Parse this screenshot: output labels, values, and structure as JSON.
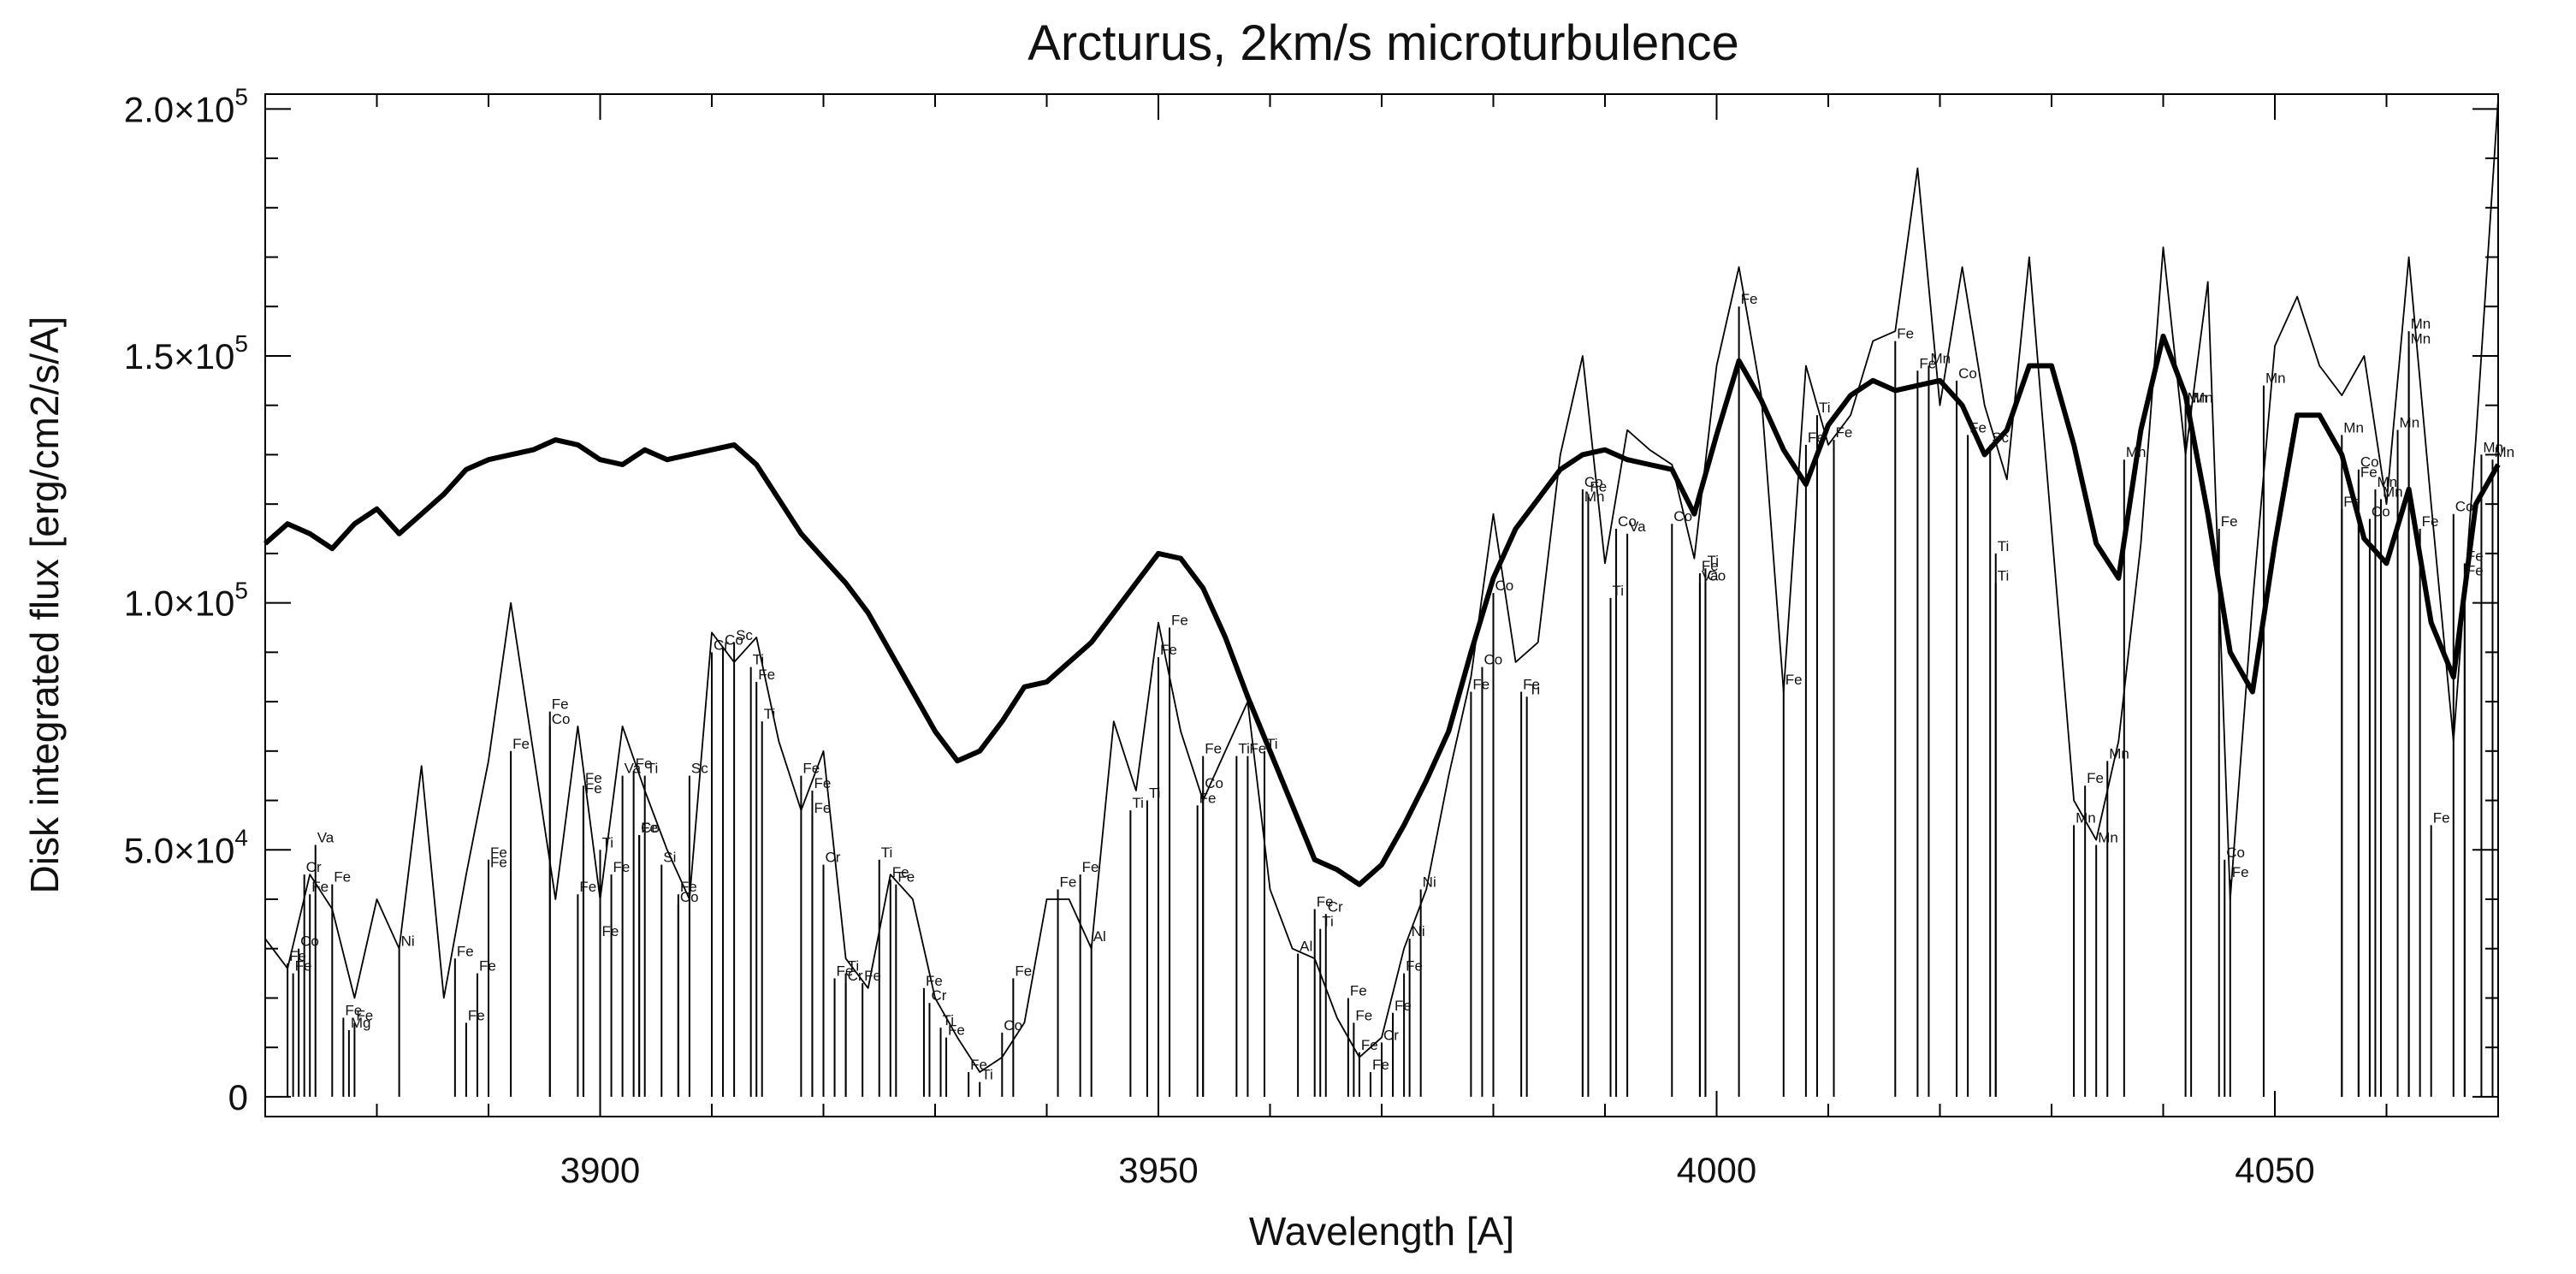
{
  "chart_data": {
    "type": "line",
    "title": "Arcturus, 2km/s microturbulence",
    "xlabel": "Wavelength [A]",
    "ylabel": "Disk integrated flux [erg/cm2/s/A]",
    "xlim": [
      3870,
      4070
    ],
    "ylim": [
      -4000,
      203000
    ],
    "x_ticks": [
      3900,
      3950,
      4000,
      4050
    ],
    "x_tick_labels": [
      "3900",
      "3950",
      "4000",
      "4050"
    ],
    "y_ticks": [
      0,
      50000,
      100000,
      150000,
      200000
    ],
    "y_tick_labels": [
      {
        "mantissa": "0",
        "exp": ""
      },
      {
        "mantissa": "5.0×10",
        "exp": "4"
      },
      {
        "mantissa": "1.0×10",
        "exp": "5"
      },
      {
        "mantissa": "1.5×10",
        "exp": "5"
      },
      {
        "mantissa": "2.0×10",
        "exp": "5"
      }
    ],
    "series": [
      {
        "style": "thick",
        "x": [
          3870,
          3872,
          3874,
          3876,
          3878,
          3880,
          3882,
          3884,
          3886,
          3888,
          3890,
          3892,
          3894,
          3896,
          3898,
          3900,
          3902,
          3904,
          3906,
          3908,
          3910,
          3912,
          3914,
          3916,
          3918,
          3920,
          3922,
          3924,
          3926,
          3928,
          3930,
          3932,
          3934,
          3936,
          3938,
          3940,
          3942,
          3944,
          3946,
          3948,
          3950,
          3952,
          3954,
          3956,
          3958,
          3960,
          3962,
          3964,
          3966,
          3968,
          3970,
          3972,
          3974,
          3976,
          3978,
          3980,
          3982,
          3984,
          3986,
          3988,
          3990,
          3992,
          3994,
          3996,
          3998,
          4000,
          4002,
          4004,
          4006,
          4008,
          4010,
          4012,
          4014,
          4016,
          4018,
          4020,
          4022,
          4024,
          4026,
          4028,
          4030,
          4032,
          4034,
          4036,
          4038,
          4040,
          4042,
          4044,
          4046,
          4048,
          4050,
          4052,
          4054,
          4056,
          4058,
          4060,
          4062,
          4064,
          4066,
          4068,
          4070
        ],
        "y": [
          112000,
          116000,
          114000,
          111000,
          116000,
          119000,
          114000,
          118000,
          122000,
          127000,
          129000,
          130000,
          131000,
          133000,
          132000,
          129000,
          128000,
          131000,
          129000,
          130000,
          131000,
          132000,
          128000,
          121000,
          114000,
          109000,
          104000,
          98000,
          90000,
          82000,
          74000,
          68000,
          70000,
          76000,
          83000,
          84000,
          88000,
          92000,
          98000,
          104000,
          110000,
          109000,
          103000,
          93000,
          81000,
          70000,
          59000,
          48000,
          46000,
          43000,
          47000,
          55000,
          64000,
          74000,
          90000,
          105000,
          115000,
          121000,
          127000,
          130000,
          131000,
          129000,
          128000,
          127000,
          118000,
          134000,
          149000,
          141000,
          131000,
          124000,
          136000,
          142000,
          145000,
          143000,
          144000,
          145000,
          140000,
          130000,
          135000,
          148000,
          148000,
          132000,
          112000,
          105000,
          135000,
          154000,
          142000,
          118000,
          90000,
          82000,
          112000,
          138000,
          138000,
          130000,
          113000,
          108000,
          123000,
          96000,
          85000,
          120000,
          128000
        ]
      },
      {
        "style": "thin",
        "x": [
          3870,
          3872,
          3874,
          3876,
          3878,
          3880,
          3882,
          3884,
          3886,
          3888,
          3890,
          3892,
          3894,
          3896,
          3898,
          3900,
          3902,
          3904,
          3906,
          3908,
          3910,
          3912,
          3914,
          3916,
          3918,
          3920,
          3922,
          3924,
          3926,
          3928,
          3930,
          3932,
          3934,
          3936,
          3938,
          3940,
          3942,
          3944,
          3946,
          3948,
          3950,
          3952,
          3954,
          3956,
          3958,
          3960,
          3962,
          3964,
          3966,
          3968,
          3970,
          3972,
          3974,
          3976,
          3978,
          3980,
          3982,
          3984,
          3986,
          3988,
          3990,
          3992,
          3994,
          3996,
          3998,
          4000,
          4002,
          4004,
          4006,
          4008,
          4010,
          4012,
          4014,
          4016,
          4018,
          4020,
          4022,
          4024,
          4026,
          4028,
          4030,
          4032,
          4034,
          4036,
          4038,
          4040,
          4042,
          4044,
          4046,
          4048,
          4050,
          4052,
          4054,
          4056,
          4058,
          4060,
          4062,
          4064,
          4066,
          4068,
          4070
        ],
        "y": [
          32000,
          26000,
          45000,
          38000,
          20000,
          40000,
          30000,
          67000,
          20000,
          45000,
          68000,
          100000,
          70000,
          40000,
          75000,
          40000,
          75000,
          62000,
          50000,
          40000,
          94000,
          88000,
          93000,
          72000,
          58000,
          70000,
          28000,
          22000,
          45000,
          40000,
          20000,
          12000,
          5000,
          8000,
          15000,
          40000,
          40000,
          30000,
          76000,
          62000,
          96000,
          74000,
          60000,
          70000,
          80000,
          42000,
          30000,
          28000,
          16000,
          8000,
          12000,
          30000,
          42000,
          65000,
          85000,
          118000,
          88000,
          92000,
          130000,
          150000,
          108000,
          135000,
          131000,
          128000,
          109000,
          148000,
          168000,
          142000,
          82000,
          148000,
          132000,
          138000,
          153000,
          155000,
          188000,
          140000,
          168000,
          140000,
          125000,
          170000,
          115000,
          60000,
          52000,
          72000,
          112000,
          172000,
          130000,
          165000,
          40000,
          100000,
          152000,
          162000,
          148000,
          142000,
          150000,
          120000,
          170000,
          120000,
          72000,
          133000,
          202000
        ]
      }
    ],
    "line_labels": [
      {
        "x": 3874.5,
        "y": 51000,
        "t": "Va"
      },
      {
        "x": 3873.5,
        "y": 45000,
        "t": "Cr"
      },
      {
        "x": 3874,
        "y": 41000,
        "t": "Fe"
      },
      {
        "x": 3876,
        "y": 43000,
        "t": "Fe"
      },
      {
        "x": 3873,
        "y": 30000,
        "t": "Co"
      },
      {
        "x": 3872,
        "y": 27000,
        "t": "Fe"
      },
      {
        "x": 3872.5,
        "y": 25000,
        "t": "Fe"
      },
      {
        "x": 3877,
        "y": 16000,
        "t": "Fe"
      },
      {
        "x": 3878,
        "y": 15000,
        "t": "Fe"
      },
      {
        "x": 3877.5,
        "y": 13500,
        "t": "Mg"
      },
      {
        "x": 3882,
        "y": 30000,
        "t": "Ni"
      },
      {
        "x": 3887,
        "y": 28000,
        "t": "Fe"
      },
      {
        "x": 3889,
        "y": 25000,
        "t": "Fe"
      },
      {
        "x": 3888,
        "y": 15000,
        "t": "Fe"
      },
      {
        "x": 3890,
        "y": 48000,
        "t": "Fe"
      },
      {
        "x": 3890,
        "y": 46000,
        "t": "Fe"
      },
      {
        "x": 3892,
        "y": 70000,
        "t": "Fe"
      },
      {
        "x": 3895.5,
        "y": 78000,
        "t": "Fe"
      },
      {
        "x": 3895.5,
        "y": 75000,
        "t": "Co"
      },
      {
        "x": 3898,
        "y": 41000,
        "t": "Fe"
      },
      {
        "x": 3898.5,
        "y": 63000,
        "t": "Fe"
      },
      {
        "x": 3898.5,
        "y": 61000,
        "t": "Fe"
      },
      {
        "x": 3900,
        "y": 50000,
        "t": "Ti"
      },
      {
        "x": 3902,
        "y": 65000,
        "t": "Va"
      },
      {
        "x": 3903,
        "y": 66000,
        "t": "Fe"
      },
      {
        "x": 3904,
        "y": 65000,
        "t": "Ti"
      },
      {
        "x": 3903.5,
        "y": 53000,
        "t": "Co"
      },
      {
        "x": 3903.5,
        "y": 53000,
        "t": "Fe"
      },
      {
        "x": 3901,
        "y": 45000,
        "t": "Fe"
      },
      {
        "x": 3905.5,
        "y": 47000,
        "t": "Si"
      },
      {
        "x": 3907,
        "y": 41000,
        "t": "Fe"
      },
      {
        "x": 3907,
        "y": 39000,
        "t": "Co"
      },
      {
        "x": 3900,
        "y": 32000,
        "t": "Fe"
      },
      {
        "x": 3908,
        "y": 65000,
        "t": "Sc"
      },
      {
        "x": 3910,
        "y": 90000,
        "t": "Cr"
      },
      {
        "x": 3911,
        "y": 91000,
        "t": "Co"
      },
      {
        "x": 3912,
        "y": 92000,
        "t": "Sc"
      },
      {
        "x": 3913.5,
        "y": 87000,
        "t": "Ti"
      },
      {
        "x": 3914,
        "y": 84000,
        "t": "Fe"
      },
      {
        "x": 3914.5,
        "y": 76000,
        "t": "Ti"
      },
      {
        "x": 3918,
        "y": 65000,
        "t": "Fe"
      },
      {
        "x": 3919,
        "y": 62000,
        "t": "Fe"
      },
      {
        "x": 3919,
        "y": 57000,
        "t": "Fe"
      },
      {
        "x": 3920,
        "y": 47000,
        "t": "Cr"
      },
      {
        "x": 3921,
        "y": 24000,
        "t": "Fe"
      },
      {
        "x": 3922,
        "y": 25000,
        "t": "Ti"
      },
      {
        "x": 3922,
        "y": 23000,
        "t": "Cr"
      },
      {
        "x": 3923.5,
        "y": 23000,
        "t": "Fe"
      },
      {
        "x": 3925,
        "y": 48000,
        "t": "Ti"
      },
      {
        "x": 3926,
        "y": 44000,
        "t": "Fe"
      },
      {
        "x": 3926.5,
        "y": 43000,
        "t": "Fe"
      },
      {
        "x": 3929,
        "y": 22000,
        "t": "Fe"
      },
      {
        "x": 3929.5,
        "y": 19000,
        "t": "Cr"
      },
      {
        "x": 3930.5,
        "y": 14000,
        "t": "Ti"
      },
      {
        "x": 3931,
        "y": 12000,
        "t": "Fe"
      },
      {
        "x": 3933,
        "y": 5000,
        "t": "Fe"
      },
      {
        "x": 3934,
        "y": 3000,
        "t": "Ti"
      },
      {
        "x": 3936,
        "y": 13000,
        "t": "Co"
      },
      {
        "x": 3937,
        "y": 24000,
        "t": "Fe"
      },
      {
        "x": 3941,
        "y": 42000,
        "t": "Fe"
      },
      {
        "x": 3943,
        "y": 45000,
        "t": "Fe"
      },
      {
        "x": 3944,
        "y": 31000,
        "t": "Al"
      },
      {
        "x": 3947.5,
        "y": 58000,
        "t": "Ti"
      },
      {
        "x": 3949,
        "y": 60000,
        "t": "Ti"
      },
      {
        "x": 3950,
        "y": 89000,
        "t": "Fe"
      },
      {
        "x": 3951,
        "y": 95000,
        "t": "Fe"
      },
      {
        "x": 3954,
        "y": 69000,
        "t": "Fe"
      },
      {
        "x": 3954,
        "y": 62000,
        "t": "Co"
      },
      {
        "x": 3953.5,
        "y": 59000,
        "t": "Fe"
      },
      {
        "x": 3957,
        "y": 69000,
        "t": "Ti"
      },
      {
        "x": 3958,
        "y": 69000,
        "t": "Fe"
      },
      {
        "x": 3959.5,
        "y": 70000,
        "t": "Ti"
      },
      {
        "x": 3962.5,
        "y": 29000,
        "t": "Al"
      },
      {
        "x": 3964,
        "y": 38000,
        "t": "Fe"
      },
      {
        "x": 3965,
        "y": 37000,
        "t": "Cr"
      },
      {
        "x": 3964.5,
        "y": 34000,
        "t": "Ti"
      },
      {
        "x": 3967,
        "y": 20000,
        "t": "Fe"
      },
      {
        "x": 3967.5,
        "y": 15000,
        "t": "Fe"
      },
      {
        "x": 3968,
        "y": 9000,
        "t": "Fe"
      },
      {
        "x": 3969,
        "y": 5000,
        "t": "Fe"
      },
      {
        "x": 3970,
        "y": 11000,
        "t": "Cr"
      },
      {
        "x": 3971,
        "y": 17000,
        "t": "Fe"
      },
      {
        "x": 3972,
        "y": 25000,
        "t": "Fe"
      },
      {
        "x": 3972.5,
        "y": 32000,
        "t": "Ni"
      },
      {
        "x": 3973.5,
        "y": 42000,
        "t": "Ni"
      },
      {
        "x": 3979,
        "y": 87000,
        "t": "Co"
      },
      {
        "x": 3978,
        "y": 82000,
        "t": "Fe"
      },
      {
        "x": 3980,
        "y": 102000,
        "t": "Co"
      },
      {
        "x": 3982.5,
        "y": 82000,
        "t": "Fe"
      },
      {
        "x": 3983,
        "y": 81000,
        "t": "Ti"
      },
      {
        "x": 3988,
        "y": 123000,
        "t": "Co"
      },
      {
        "x": 3988.5,
        "y": 122000,
        "t": "Fe"
      },
      {
        "x": 3988,
        "y": 120000,
        "t": "Mn"
      },
      {
        "x": 3991,
        "y": 115000,
        "t": "Co"
      },
      {
        "x": 3992,
        "y": 114000,
        "t": "Va"
      },
      {
        "x": 3990.5,
        "y": 101000,
        "t": "Ti"
      },
      {
        "x": 3996,
        "y": 116000,
        "t": "Co"
      },
      {
        "x": 3998.5,
        "y": 106000,
        "t": "Fe"
      },
      {
        "x": 3999,
        "y": 107000,
        "t": "Ti"
      },
      {
        "x": 3998.5,
        "y": 104000,
        "t": "Va"
      },
      {
        "x": 3999,
        "y": 104000,
        "t": "Co"
      },
      {
        "x": 4002,
        "y": 160000,
        "t": "Fe"
      },
      {
        "x": 4006,
        "y": 83000,
        "t": "Fe"
      },
      {
        "x": 4008,
        "y": 132000,
        "t": "Fe"
      },
      {
        "x": 4009,
        "y": 138000,
        "t": "Ti"
      },
      {
        "x": 4010.5,
        "y": 133000,
        "t": "Fe"
      },
      {
        "x": 4016,
        "y": 153000,
        "t": "Fe"
      },
      {
        "x": 4018,
        "y": 147000,
        "t": "Fe"
      },
      {
        "x": 4019,
        "y": 148000,
        "t": "Mn"
      },
      {
        "x": 4021.5,
        "y": 145000,
        "t": "Co"
      },
      {
        "x": 4022.5,
        "y": 134000,
        "t": "Fe"
      },
      {
        "x": 4024.5,
        "y": 132000,
        "t": "Sc"
      },
      {
        "x": 4025,
        "y": 110000,
        "t": "Ti"
      },
      {
        "x": 4025,
        "y": 104000,
        "t": "Ti"
      },
      {
        "x": 4036.5,
        "y": 129000,
        "t": "Mn"
      },
      {
        "x": 4032,
        "y": 55000,
        "t": "Mn"
      },
      {
        "x": 4033,
        "y": 63000,
        "t": "Fe"
      },
      {
        "x": 4034,
        "y": 51000,
        "t": "Mn"
      },
      {
        "x": 4035,
        "y": 68000,
        "t": "Mn"
      },
      {
        "x": 4042,
        "y": 140000,
        "t": "Mn"
      },
      {
        "x": 4042.5,
        "y": 140000,
        "t": "Mn"
      },
      {
        "x": 4045,
        "y": 115000,
        "t": "Fe"
      },
      {
        "x": 4045.5,
        "y": 48000,
        "t": "Co"
      },
      {
        "x": 4046,
        "y": 44000,
        "t": "Fe"
      },
      {
        "x": 4049,
        "y": 144000,
        "t": "Mn"
      },
      {
        "x": 4056,
        "y": 134000,
        "t": "Mn"
      },
      {
        "x": 4056,
        "y": 119000,
        "t": "Fe"
      },
      {
        "x": 4057.5,
        "y": 127000,
        "t": "Co"
      },
      {
        "x": 4057.5,
        "y": 125000,
        "t": "Fe"
      },
      {
        "x": 4059,
        "y": 123000,
        "t": "Mn"
      },
      {
        "x": 4059.5,
        "y": 121000,
        "t": "Mn"
      },
      {
        "x": 4058.5,
        "y": 117000,
        "t": "Co"
      },
      {
        "x": 4061,
        "y": 135000,
        "t": "Mn"
      },
      {
        "x": 4062,
        "y": 155000,
        "t": "Mn"
      },
      {
        "x": 4062,
        "y": 152000,
        "t": "Mn"
      },
      {
        "x": 4063,
        "y": 115000,
        "t": "Fe"
      },
      {
        "x": 4064,
        "y": 55000,
        "t": "Fe"
      },
      {
        "x": 4066,
        "y": 118000,
        "t": "Co"
      },
      {
        "x": 4067,
        "y": 108000,
        "t": "Fe"
      },
      {
        "x": 4067,
        "y": 105000,
        "t": "Fe"
      },
      {
        "x": 4068.5,
        "y": 130000,
        "t": "Mn"
      },
      {
        "x": 4069.5,
        "y": 129000,
        "t": "Mn"
      }
    ]
  }
}
